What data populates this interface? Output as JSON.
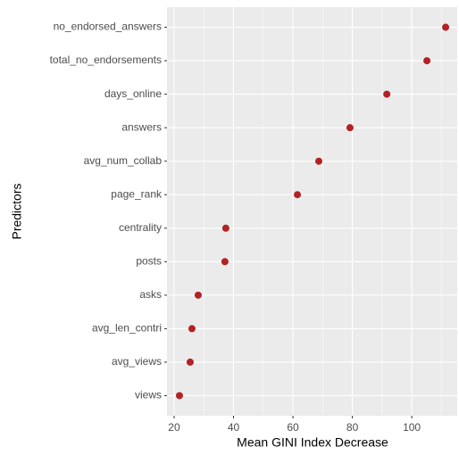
{
  "chart_data": {
    "type": "dot",
    "x_label": "Mean GINI Index Decrease",
    "y_label": "Predictors",
    "categories": [
      "views",
      "avg_views",
      "avg_len_contri",
      "asks",
      "posts",
      "centrality",
      "page_rank",
      "avg_num_collab",
      "answers",
      "days_online",
      "total_no_endorsements",
      "no_endorsed_answers"
    ],
    "values": [
      21.8,
      25.4,
      26.0,
      28.1,
      37.1,
      37.4,
      61.5,
      68.7,
      79.2,
      91.6,
      105.1,
      111.4
    ],
    "color": "#b22222",
    "xlim": [
      17.6,
      115.3
    ],
    "xticks": [
      20,
      40,
      60,
      80,
      100
    ],
    "grid": true
  }
}
